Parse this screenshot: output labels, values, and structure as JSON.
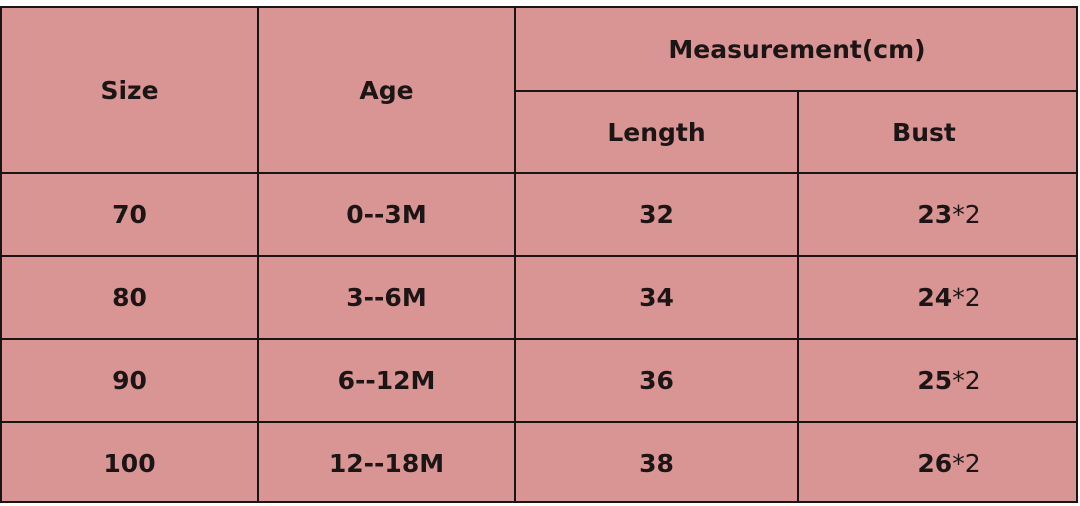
{
  "table": {
    "background_color": "#d99594",
    "headers": {
      "size": "Size",
      "age": "Age",
      "measurement": "Measurement(cm)",
      "length": "Length",
      "bust": "Bust"
    },
    "rows": [
      {
        "size": "70",
        "age": "0--3M",
        "length": "32",
        "bust": "23",
        "bust_multiplier": "*2"
      },
      {
        "size": "80",
        "age": "3--6M",
        "length": "34",
        "bust": "24",
        "bust_multiplier": "*2"
      },
      {
        "size": "90",
        "age": "6--12M",
        "length": "36",
        "bust": "25",
        "bust_multiplier": "*2"
      },
      {
        "size": "100",
        "age": "12--18M",
        "length": "38",
        "bust": "26",
        "bust_multiplier": "*2"
      }
    ]
  }
}
